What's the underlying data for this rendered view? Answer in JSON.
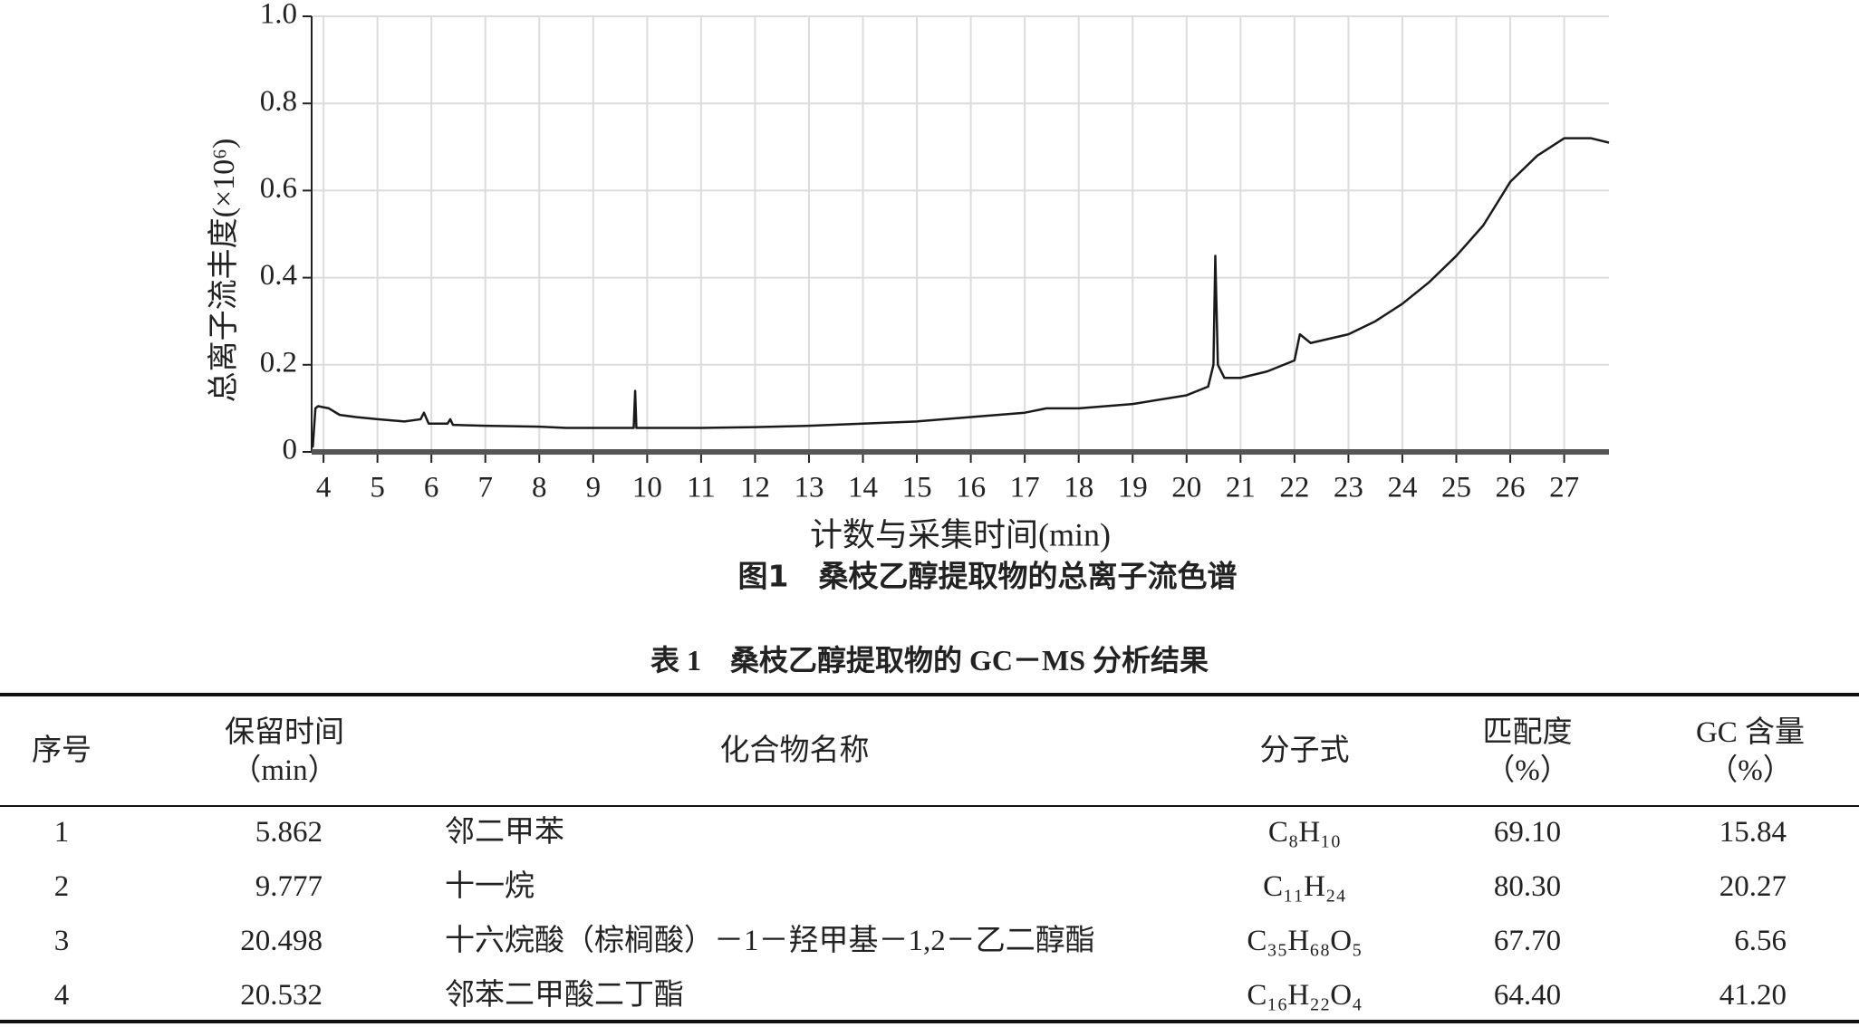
{
  "chart_data": {
    "type": "line",
    "ylabel": "总离子流丰度(×10⁶)",
    "xlabel": "计数与采集时间(min)",
    "caption": "图1　桑枝乙醇提取物的总离子流色谱",
    "xlim": [
      3.78,
      27.83
    ],
    "xticks": [
      4,
      5,
      6,
      7,
      8,
      9,
      10,
      11,
      12,
      13,
      14,
      15,
      16,
      17,
      18,
      19,
      20,
      21,
      22,
      23,
      24,
      25,
      26,
      27
    ],
    "ylim": [
      0,
      1
    ],
    "yticks": [
      0,
      0.2,
      0.4,
      0.6,
      0.8,
      {
        "value": 1,
        "label": "1.0"
      }
    ],
    "grid": true,
    "color": "#1a1a1a",
    "x": [
      3.8,
      3.85,
      3.9,
      4.1,
      4.3,
      4.6,
      5.0,
      5.5,
      5.8,
      5.862,
      5.95,
      6.3,
      6.35,
      6.4,
      7.0,
      8.0,
      8.5,
      9.5,
      9.75,
      9.777,
      9.8,
      11,
      12,
      13,
      14,
      15,
      16,
      17,
      17.4,
      18,
      19,
      20,
      20.4,
      20.498,
      20.532,
      20.58,
      20.7,
      21,
      21.5,
      22,
      22.1,
      22.3,
      23,
      23.5,
      24,
      24.5,
      25,
      25.5,
      26,
      26.5,
      27,
      27.5,
      27.83
    ],
    "values": [
      0.01,
      0.1,
      0.105,
      0.1,
      0.085,
      0.08,
      0.075,
      0.07,
      0.075,
      0.09,
      0.065,
      0.065,
      0.075,
      0.062,
      0.06,
      0.058,
      0.055,
      0.055,
      0.055,
      0.14,
      0.055,
      0.055,
      0.057,
      0.06,
      0.065,
      0.07,
      0.08,
      0.09,
      0.1,
      0.1,
      0.11,
      0.13,
      0.15,
      0.2,
      0.45,
      0.2,
      0.17,
      0.17,
      0.185,
      0.21,
      0.27,
      0.25,
      0.27,
      0.3,
      0.34,
      0.39,
      0.45,
      0.52,
      0.62,
      0.68,
      0.72,
      0.72,
      0.71
    ]
  },
  "table": {
    "title": "表 1　桑枝乙醇提取物的 GC－MS 分析结果",
    "header": [
      [
        "序号"
      ],
      [
        "保留时间",
        "（min）"
      ],
      [
        "化合物名称"
      ],
      [
        "分子式"
      ],
      [
        "匹配度",
        "（%）"
      ],
      [
        "GC 含量",
        "（%）"
      ]
    ],
    "rows": [
      [
        "1",
        "5.862",
        "邻二甲苯",
        "C₈H₁₀",
        "69.10",
        "15.84"
      ],
      [
        "2",
        "9.777",
        "十一烷",
        "C₁₁H₂₄",
        "80.30",
        "20.27"
      ],
      [
        "3",
        "20.498",
        "十六烷酸（棕榈酸）－1－羟甲基－1,2－乙二醇酯",
        "C₃₅H₆₈O₅",
        "67.70",
        "6.56"
      ],
      [
        "4",
        "20.532",
        "邻苯二甲酸二丁酯",
        "C₁₆H₂₂O₄",
        "64.40",
        "41.20"
      ]
    ]
  }
}
